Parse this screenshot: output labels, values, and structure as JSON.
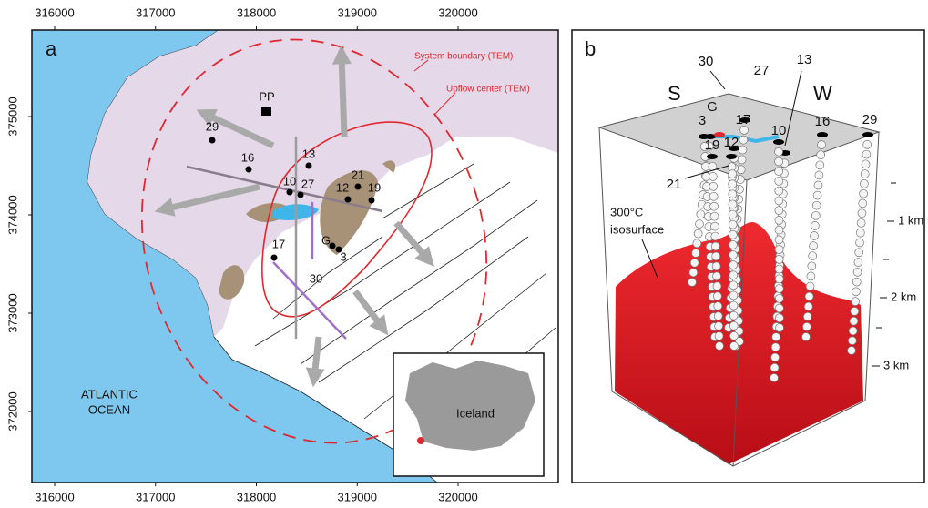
{
  "panel_a": {
    "label": "a",
    "easting_ticks": [
      316000,
      317000,
      318000,
      319000,
      320000
    ],
    "northing_ticks": [
      372000,
      373000,
      374000,
      375000
    ],
    "plant": "PP",
    "wells": [
      "29",
      "16",
      "13",
      "10",
      "27",
      "21",
      "12",
      "19",
      "G",
      "3",
      "17",
      "30"
    ],
    "annotations": [
      "System boundary (TEM)",
      "Upflow center (TEM)"
    ],
    "ocean": [
      "ATLANTIC",
      "OCEAN"
    ],
    "inset": "Iceland"
  },
  "panel_b": {
    "label": "b",
    "directions": [
      "S",
      "W"
    ],
    "wells": [
      "30",
      "17",
      "27",
      "13",
      "G",
      "3",
      "10",
      "16",
      "29",
      "19",
      "12",
      "21"
    ],
    "isosurface": [
      "300°C",
      "isosurface"
    ],
    "depths": [
      "1 km",
      "2 km",
      "3 km"
    ]
  }
}
